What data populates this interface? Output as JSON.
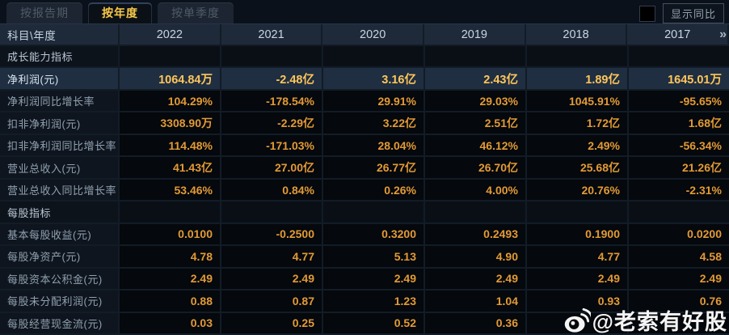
{
  "tabs": [
    {
      "label": "按报告期",
      "active": false
    },
    {
      "label": "按年度",
      "active": true
    },
    {
      "label": "按单季度",
      "active": false
    }
  ],
  "controls": {
    "show_yoy_label": "显示同比",
    "checkbox_checked": false
  },
  "table": {
    "corner_label": "科目\\年度",
    "years": [
      "2022",
      "2021",
      "2020",
      "2019",
      "2018",
      "2017"
    ],
    "more_icon": "»",
    "rows": [
      {
        "type": "section",
        "label": "成长能力指标"
      },
      {
        "type": "data",
        "label": "净利润(元)",
        "highlight": true,
        "values": [
          "1064.84万",
          "-2.48亿",
          "3.16亿",
          "2.43亿",
          "1.89亿",
          "1645.01万"
        ]
      },
      {
        "type": "data",
        "label": "净利润同比增长率",
        "values": [
          "104.29%",
          "-178.54%",
          "29.91%",
          "29.03%",
          "1045.91%",
          "-95.65%"
        ]
      },
      {
        "type": "data",
        "label": "扣非净利润(元)",
        "values": [
          "3308.90万",
          "-2.29亿",
          "3.22亿",
          "2.51亿",
          "1.72亿",
          "1.68亿"
        ]
      },
      {
        "type": "data",
        "label": "扣非净利润同比增长率",
        "values": [
          "114.48%",
          "-171.03%",
          "28.04%",
          "46.12%",
          "2.49%",
          "-56.34%"
        ]
      },
      {
        "type": "data",
        "label": "营业总收入(元)",
        "values": [
          "41.43亿",
          "27.00亿",
          "26.77亿",
          "26.70亿",
          "25.68亿",
          "21.26亿"
        ]
      },
      {
        "type": "data",
        "label": "营业总收入同比增长率",
        "values": [
          "53.46%",
          "0.84%",
          "0.26%",
          "4.00%",
          "20.76%",
          "-2.31%"
        ]
      },
      {
        "type": "section",
        "label": "每股指标"
      },
      {
        "type": "data",
        "label": "基本每股收益(元)",
        "values": [
          "0.0100",
          "-0.2500",
          "0.3200",
          "0.2493",
          "0.1900",
          "0.0200"
        ]
      },
      {
        "type": "data",
        "label": "每股净资产(元)",
        "values": [
          "4.78",
          "4.77",
          "5.13",
          "4.90",
          "4.77",
          "4.58"
        ]
      },
      {
        "type": "data",
        "label": "每股资本公积金(元)",
        "values": [
          "2.49",
          "2.49",
          "2.49",
          "2.49",
          "2.49",
          "2.49"
        ]
      },
      {
        "type": "data",
        "label": "每股未分配利润(元)",
        "values": [
          "0.88",
          "0.87",
          "1.23",
          "1.04",
          "0.93",
          "0.76"
        ]
      },
      {
        "type": "data",
        "label": "每股经营现金流(元)",
        "values": [
          "0.03",
          "0.25",
          "0.52",
          "0.36",
          "",
          ""
        ]
      }
    ]
  },
  "watermark": {
    "text": "@老索有好股",
    "icon": "weibo-icon"
  },
  "colors": {
    "accent_gold": "#f8c947",
    "value_orange": "#e29a36",
    "highlight_row_bg": "#1f2e41",
    "header_bg": "#1e2a39",
    "page_bg": "#04070b"
  }
}
